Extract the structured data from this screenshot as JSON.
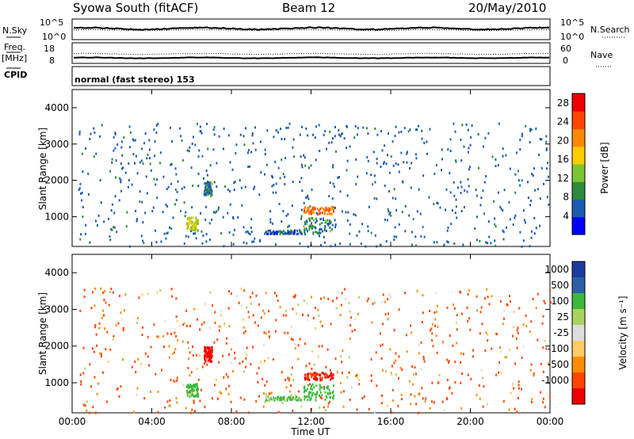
{
  "header": {
    "station": "Syowa South (fitACF)",
    "beam": "Beam 12",
    "date": "20/May/2010"
  },
  "noise_panel": {
    "left_label": "N.Sky",
    "left_ticks": [
      "10^5",
      "10^0"
    ],
    "right_ticks": [
      "10^5",
      "10^0"
    ],
    "right_label": "N.Search"
  },
  "freq_panel": {
    "left_label_1": "Freq.",
    "left_label_2": "[MHz]",
    "left_ticks": [
      "18",
      "8"
    ],
    "right_ticks": [
      "60",
      "0"
    ],
    "right_label": "Nave",
    "cpid_label": "CPID"
  },
  "mode_text": "normal (fast stereo) 153",
  "colors": {
    "power_scale": [
      "#0000ff",
      "#1c5bb0",
      "#2d8a3c",
      "#7cc531",
      "#ffcc00",
      "#ff8800",
      "#ff4400",
      "#ee0000"
    ],
    "velocity_scale": [
      "#ee0000",
      "#ff4400",
      "#ff8c00",
      "#ffcc66",
      "#dddddd",
      "#a9d35f",
      "#3cb83c",
      "#2c5fa8",
      "#1c3aa0"
    ]
  },
  "chart_data": [
    {
      "type": "heatmap",
      "title": "",
      "xlabel": "",
      "ylabel": "Slant Range [km]",
      "x_ticks": [
        "00:00",
        "04:00",
        "08:00",
        "12:00",
        "16:00",
        "20:00",
        "00:00"
      ],
      "xlim": [
        0,
        24
      ],
      "y_ticks": [
        1000,
        2000,
        3000,
        4000
      ],
      "ylim": [
        180,
        4500
      ],
      "colorbar_label": "Power [dB]",
      "colorbar_ticks": [
        4,
        8,
        12,
        16,
        20,
        24,
        28
      ],
      "colorbar_range": [
        0,
        30
      ],
      "echo_regions": [
        {
          "t": [
            0.3,
            24
          ],
          "r": [
            200,
            3600
          ],
          "value": 6
        },
        {
          "t": [
            5.7,
            6.3
          ],
          "r": [
            650,
            1000
          ],
          "value": 15
        },
        {
          "t": [
            6.6,
            7.0
          ],
          "r": [
            1600,
            2000
          ],
          "value": 8
        },
        {
          "t": [
            9.7,
            11.5
          ],
          "r": [
            550,
            650
          ],
          "value": 6
        },
        {
          "t": [
            11.6,
            13.1
          ],
          "r": [
            1100,
            1300
          ],
          "value": 22
        },
        {
          "t": [
            11.6,
            13.1
          ],
          "r": [
            550,
            1000
          ],
          "value": 9
        }
      ]
    },
    {
      "type": "heatmap",
      "title": "",
      "xlabel": "Time UT",
      "ylabel": "Slant Range [km]",
      "x_ticks": [
        "00:00",
        "04:00",
        "08:00",
        "12:00",
        "16:00",
        "20:00",
        "00:00"
      ],
      "xlim": [
        0,
        24
      ],
      "y_ticks": [
        1000,
        2000,
        3000,
        4000
      ],
      "ylim": [
        180,
        4500
      ],
      "colorbar_label": "Velocity [m s⁻¹]",
      "colorbar_ticks": [
        "1000",
        "500",
        "100",
        "25",
        "-25",
        "-100",
        "-500",
        "-1000"
      ],
      "colorbar_range": [
        -1000,
        1000
      ],
      "echo_regions": [
        {
          "t": [
            0.3,
            24
          ],
          "r": [
            200,
            3600
          ],
          "value": -150
        },
        {
          "t": [
            5.7,
            6.3
          ],
          "r": [
            650,
            1000
          ],
          "value": 200
        },
        {
          "t": [
            6.6,
            7.0
          ],
          "r": [
            1600,
            2000
          ],
          "value": -600
        },
        {
          "t": [
            9.7,
            11.5
          ],
          "r": [
            550,
            650
          ],
          "value": 150
        },
        {
          "t": [
            11.6,
            13.1
          ],
          "r": [
            1100,
            1300
          ],
          "value": -500
        },
        {
          "t": [
            11.6,
            13.1
          ],
          "r": [
            550,
            1000
          ],
          "value": 300
        }
      ]
    }
  ]
}
